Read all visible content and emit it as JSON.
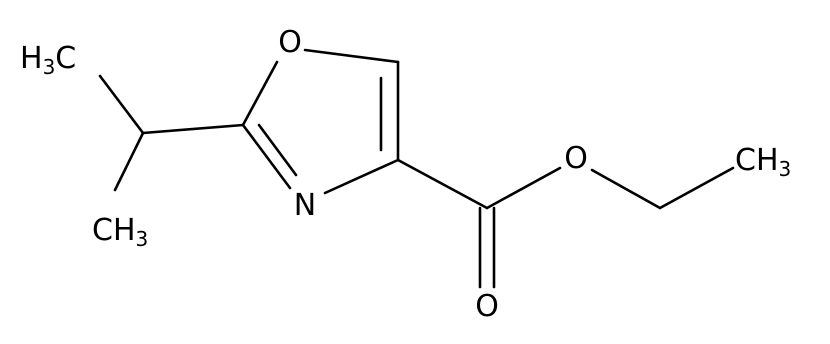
{
  "atoms": [
    {
      "parts": [
        "H",
        "3",
        "C"
      ]
    },
    {
      "parts": [
        "C",
        "H",
        "3"
      ]
    },
    {
      "parts": [
        "O"
      ]
    },
    {
      "parts": [
        "N"
      ]
    },
    {
      "parts": [
        "O"
      ]
    },
    {
      "parts": [
        "O"
      ]
    },
    {
      "parts": [
        "C",
        "H",
        "3"
      ]
    }
  ]
}
